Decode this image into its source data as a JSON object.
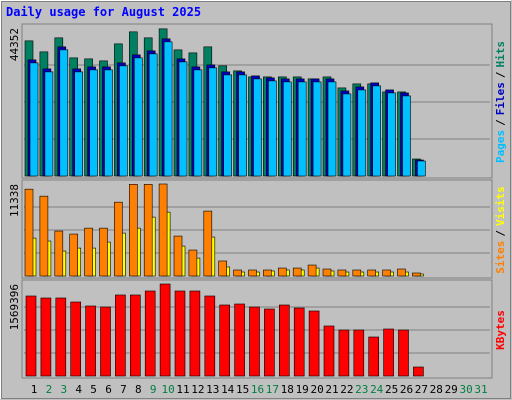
{
  "chart_data": [
    {
      "type": "bar",
      "title": "Daily usage for August 2025",
      "ylim": [
        0,
        44352
      ],
      "yticks": [
        44352
      ],
      "legend_separator": "/",
      "series": [
        {
          "name": "Pages",
          "color": "#00c0ff",
          "values": [
            33900,
            31200,
            37800,
            31200,
            31800,
            31800,
            33000,
            35400,
            36600,
            40200,
            34200,
            31800,
            32400,
            30300,
            30300,
            29100,
            28500,
            28200,
            28200,
            28200,
            28200,
            24600,
            25800,
            27000,
            24900,
            24000,
            4500,
            0,
            0,
            0,
            0
          ]
        },
        {
          "name": "Files",
          "color": "#0000c0",
          "values": [
            34800,
            32100,
            38700,
            32100,
            32700,
            32700,
            33900,
            36300,
            37500,
            41100,
            35100,
            32700,
            33300,
            31200,
            31200,
            30000,
            29400,
            29100,
            29100,
            29100,
            29100,
            25500,
            26700,
            27900,
            25800,
            24900,
            4800,
            0,
            0,
            0,
            0
          ]
        },
        {
          "name": "Hits",
          "color": "#008060",
          "values": [
            40500,
            37200,
            41400,
            35400,
            35100,
            34500,
            39600,
            43200,
            41400,
            44100,
            37800,
            36900,
            38700,
            33000,
            31500,
            29700,
            29700,
            29700,
            29700,
            29100,
            29700,
            26400,
            27600,
            27600,
            25200,
            25200,
            5100,
            0,
            0,
            0,
            0
          ]
        }
      ]
    },
    {
      "type": "bar",
      "ylim": [
        0,
        11338
      ],
      "yticks": [
        11338
      ],
      "legend_separator": "/",
      "series": [
        {
          "name": "Sites",
          "color": "#ff8000",
          "values": [
            10700,
            9840,
            5540,
            5170,
            5900,
            5900,
            9100,
            11300,
            11300,
            11338,
            4920,
            3200,
            8000,
            1850,
            740,
            740,
            740,
            980,
            980,
            1350,
            860,
            740,
            740,
            740,
            740,
            860,
            370,
            0,
            0,
            0,
            0
          ]
        },
        {
          "name": "Visits",
          "color": "#ffff00",
          "values": [
            4670,
            4310,
            3080,
            3440,
            3440,
            4180,
            5290,
            5900,
            7260,
            7870,
            3690,
            2210,
            4800,
            1110,
            490,
            490,
            620,
            740,
            740,
            980,
            620,
            490,
            490,
            490,
            490,
            490,
            250,
            0,
            0,
            0,
            0
          ]
        }
      ]
    },
    {
      "type": "bar",
      "ylim": [
        0,
        1569396
      ],
      "yticks": [
        1569396
      ],
      "categories": [
        "1",
        "2",
        "3",
        "4",
        "5",
        "6",
        "7",
        "8",
        "9",
        "10",
        "11",
        "12",
        "13",
        "14",
        "15",
        "16",
        "17",
        "18",
        "19",
        "20",
        "21",
        "22",
        "23",
        "24",
        "25",
        "26",
        "27",
        "28",
        "29",
        "30",
        "31"
      ],
      "category_colors": [
        "#000000",
        "#008040",
        "#008040",
        "#000000",
        "#000000",
        "#000000",
        "#000000",
        "#000000",
        "#008040",
        "#008040",
        "#000000",
        "#000000",
        "#000000",
        "#000000",
        "#000000",
        "#008040",
        "#008040",
        "#000000",
        "#000000",
        "#000000",
        "#000000",
        "#000000",
        "#008040",
        "#008040",
        "#000000",
        "#000000",
        "#000000",
        "#000000",
        "#000000",
        "#008040",
        "#008040"
      ],
      "series": [
        {
          "name": "KBytes",
          "color": "#ff0000",
          "values": [
            1364800,
            1330700,
            1330700,
            1262400,
            1194200,
            1177100,
            1382000,
            1382000,
            1450100,
            1569396,
            1450100,
            1450100,
            1364800,
            1211300,
            1228300,
            1177100,
            1143000,
            1211300,
            1160000,
            1108900,
            853000,
            784800,
            784800,
            665300,
            801800,
            784800,
            153500,
            0,
            0,
            0,
            0
          ]
        }
      ]
    }
  ]
}
